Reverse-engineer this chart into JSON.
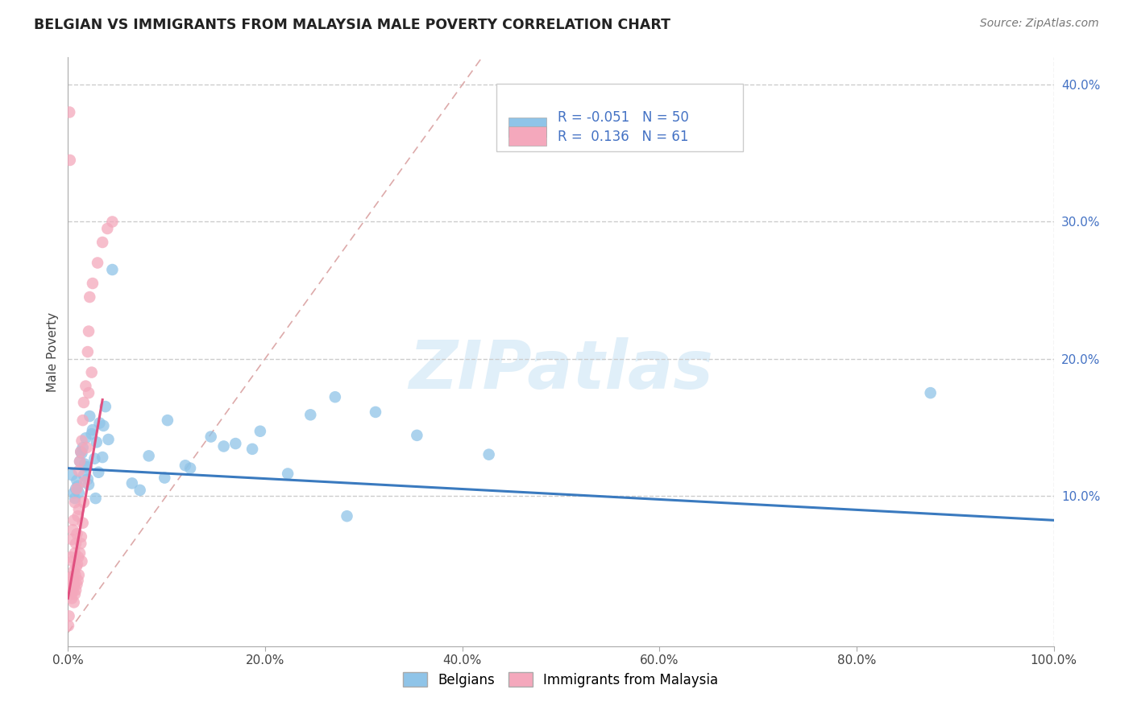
{
  "title": "BELGIAN VS IMMIGRANTS FROM MALAYSIA MALE POVERTY CORRELATION CHART",
  "source": "Source: ZipAtlas.com",
  "xlabel_ticks": [
    "0.0%",
    "20.0%",
    "40.0%",
    "60.0%",
    "80.0%",
    "100.0%"
  ],
  "xlabel_vals": [
    0,
    20,
    40,
    60,
    80,
    100
  ],
  "ylabel_ticks": [
    "10.0%",
    "20.0%",
    "30.0%",
    "40.0%"
  ],
  "ylabel_vals": [
    10,
    20,
    30,
    40
  ],
  "xlim": [
    0,
    100
  ],
  "ylim": [
    -1,
    42
  ],
  "legend_label1": "Belgians",
  "legend_label2": "Immigrants from Malaysia",
  "R1": -0.051,
  "N1": 50,
  "R2": 0.136,
  "N2": 61,
  "color_blue": "#8fc4e8",
  "color_pink": "#f4a8bc",
  "color_blue_line": "#3a7abf",
  "color_pink_line": "#e05080",
  "color_diag": "#e8b0b8",
  "watermark": "ZIPatlas",
  "belgians_x": [
    0.4,
    0.6,
    0.7,
    0.8,
    0.9,
    1.0,
    1.1,
    1.2,
    1.3,
    1.4,
    1.5,
    1.6,
    1.7,
    1.8,
    1.9,
    2.0,
    2.1,
    2.2,
    2.4,
    2.5,
    2.7,
    2.8,
    2.9,
    3.1,
    3.2,
    3.5,
    3.6,
    3.8,
    4.1,
    4.5,
    6.5,
    7.3,
    8.2,
    9.8,
    10.1,
    11.9,
    12.4,
    14.5,
    15.8,
    17.0,
    18.7,
    19.5,
    22.3,
    24.6,
    27.1,
    28.3,
    31.2,
    35.4,
    42.7,
    87.5
  ],
  "belgians_y": [
    11.5,
    10.2,
    9.8,
    10.5,
    11.1,
    10.7,
    10.2,
    12.5,
    13.2,
    13.1,
    13.5,
    11.5,
    12.3,
    14.2,
    12.1,
    11.2,
    10.8,
    15.8,
    14.5,
    14.8,
    12.7,
    9.8,
    13.9,
    11.7,
    15.3,
    12.8,
    15.1,
    16.5,
    14.1,
    26.5,
    10.9,
    10.4,
    12.9,
    11.3,
    15.5,
    12.2,
    12.0,
    14.3,
    13.6,
    13.8,
    13.4,
    14.7,
    11.6,
    15.9,
    17.2,
    8.5,
    16.1,
    14.4,
    13.0,
    17.5
  ],
  "malaysia_x": [
    0.05,
    0.1,
    0.15,
    0.2,
    0.2,
    0.25,
    0.3,
    0.3,
    0.35,
    0.4,
    0.4,
    0.45,
    0.5,
    0.5,
    0.5,
    0.55,
    0.6,
    0.6,
    0.6,
    0.65,
    0.7,
    0.7,
    0.7,
    0.75,
    0.8,
    0.8,
    0.85,
    0.9,
    0.9,
    0.9,
    0.95,
    1.0,
    1.0,
    1.05,
    1.1,
    1.1,
    1.1,
    1.2,
    1.2,
    1.3,
    1.3,
    1.35,
    1.4,
    1.4,
    1.5,
    1.5,
    1.6,
    1.6,
    1.7,
    1.8,
    1.9,
    2.0,
    2.1,
    2.1,
    2.2,
    2.4,
    2.5,
    3.0,
    3.5,
    4.0,
    4.5
  ],
  "malaysia_y": [
    0.5,
    1.2,
    38.0,
    3.5,
    34.5,
    4.0,
    2.8,
    5.5,
    3.2,
    2.5,
    6.8,
    4.1,
    3.0,
    5.2,
    7.5,
    3.8,
    2.2,
    4.5,
    8.2,
    3.5,
    2.8,
    5.8,
    9.5,
    4.2,
    3.1,
    6.5,
    4.8,
    3.5,
    7.2,
    10.5,
    5.0,
    3.8,
    8.5,
    5.5,
    4.2,
    9.0,
    11.8,
    5.8,
    12.5,
    6.5,
    13.2,
    7.0,
    5.2,
    14.0,
    8.0,
    15.5,
    9.5,
    16.8,
    11.0,
    18.0,
    13.5,
    20.5,
    22.0,
    17.5,
    24.5,
    19.0,
    25.5,
    27.0,
    28.5,
    29.5,
    30.0
  ]
}
